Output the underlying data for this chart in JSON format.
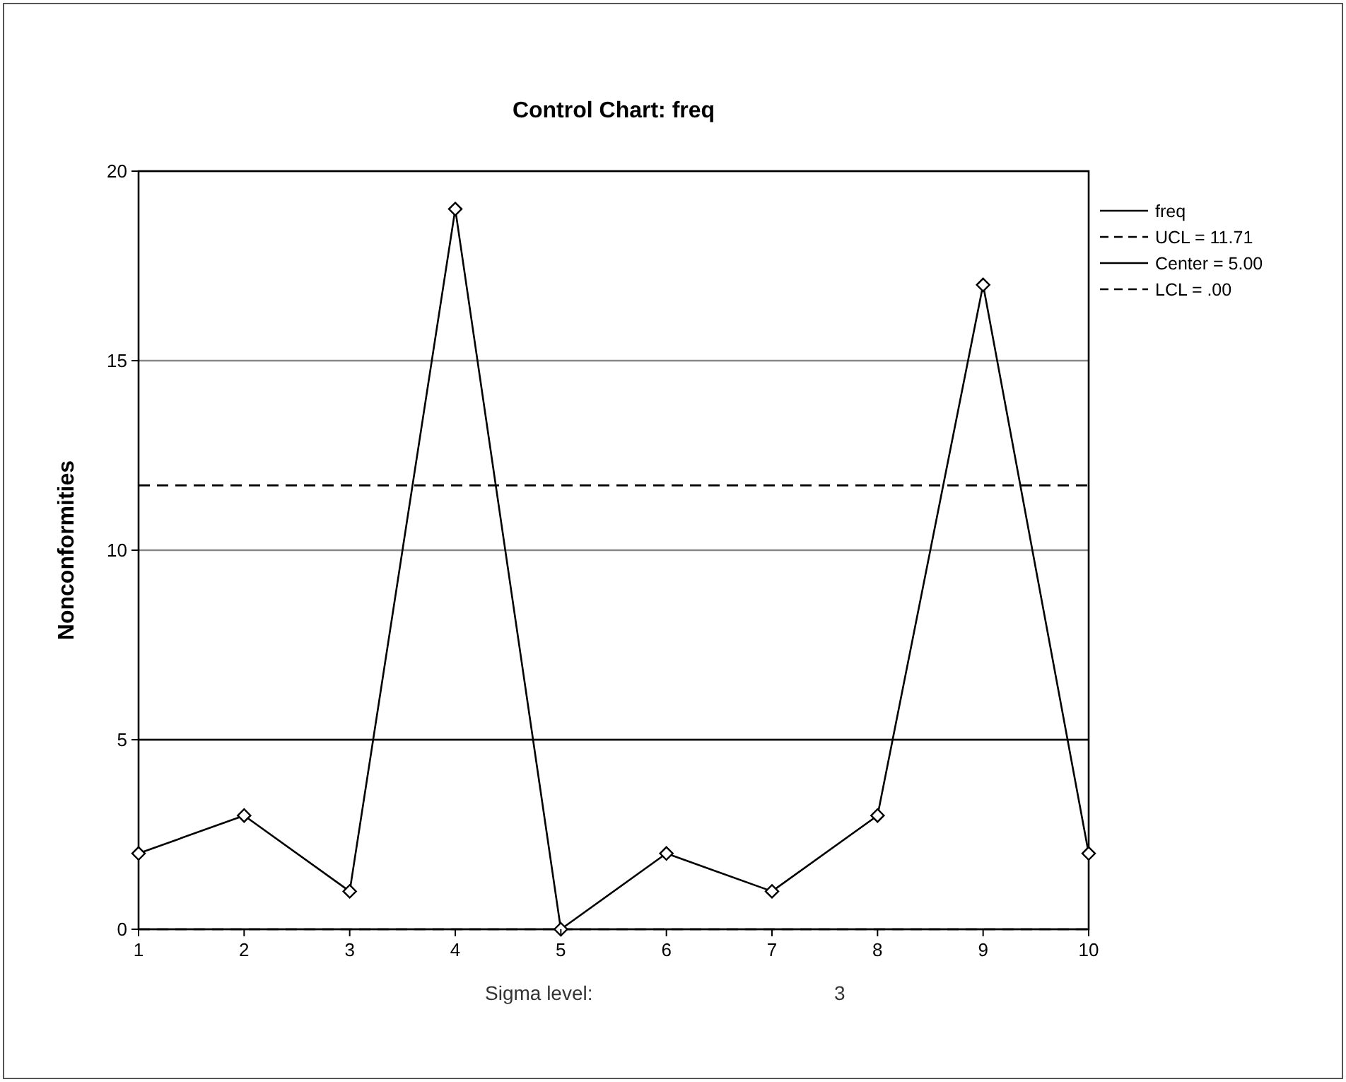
{
  "chart_data": {
    "type": "line",
    "title": "Control Chart: freq",
    "ylabel": "Nonconformities",
    "x": [
      1,
      2,
      3,
      4,
      5,
      6,
      7,
      8,
      9,
      10
    ],
    "series": [
      {
        "name": "freq",
        "color": "#000000",
        "values": [
          2,
          3,
          1,
          19,
          0,
          2,
          1,
          3,
          17,
          2
        ]
      }
    ],
    "xlim": [
      1,
      10
    ],
    "xticks": [
      1,
      2,
      3,
      4,
      5,
      6,
      7,
      8,
      9,
      10
    ],
    "ylim": [
      0,
      20
    ],
    "yticks": [
      0,
      5,
      10,
      15,
      20
    ],
    "grid": "y",
    "marker": "diamond",
    "line_style": "solid",
    "legend": "top right",
    "ref_lines": [
      {
        "axis": "y",
        "value": 11.71,
        "label": "UCL = 11.71",
        "line_style": "dashed",
        "color": "#000000"
      },
      {
        "axis": "y",
        "value": 5,
        "label": "Center = 5.00",
        "line_style": "solid",
        "color": "#000000"
      },
      {
        "axis": "y",
        "value": 0,
        "label": "LCL = .00",
        "line_style": "dashed",
        "color": "#000000"
      }
    ],
    "annotations": [
      "Sigma level:",
      "3"
    ]
  }
}
